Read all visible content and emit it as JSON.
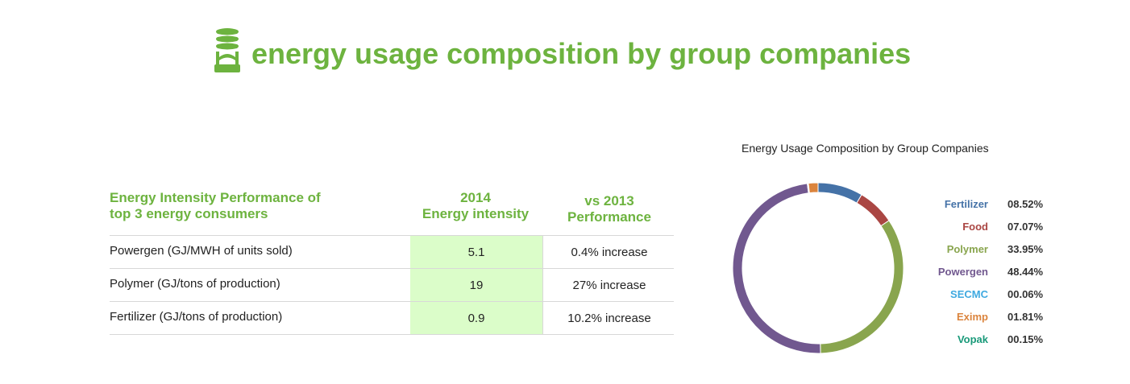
{
  "header": {
    "title": "energy usage composition by group companies",
    "icon": "lightbulb-icon",
    "color": "#6db33f"
  },
  "table": {
    "headers": {
      "col1_line1": "Energy Intensity Performance of",
      "col1_line2": "top 3 energy consumers",
      "col2_line1": "2014",
      "col2_line2": "Energy intensity",
      "col3_line1": "vs 2013",
      "col3_line2": "Performance"
    },
    "rows": [
      {
        "name": "Powergen (GJ/MWH of units sold)",
        "value": "5.1",
        "performance": "0.4% increase"
      },
      {
        "name": "Polymer (GJ/tons of production)",
        "value": "19",
        "performance": "27% increase"
      },
      {
        "name": "Fertilizer (GJ/tons of production)",
        "value": "0.9",
        "performance": "10.2% increase"
      }
    ]
  },
  "chart_data": {
    "type": "pie",
    "subtype": "donut",
    "title": "Energy Usage Composition by Group Companies",
    "legend_position": "right",
    "series": [
      {
        "name": "Fertilizer",
        "value": 8.52,
        "label": "08.52%",
        "color": "#4572a7"
      },
      {
        "name": "Food",
        "value": 7.07,
        "label": "07.07%",
        "color": "#aa4643"
      },
      {
        "name": "Polymer",
        "value": 33.95,
        "label": "33.95%",
        "color": "#89a54e"
      },
      {
        "name": "Powergen",
        "value": 48.44,
        "label": "48.44%",
        "color": "#71588f"
      },
      {
        "name": "SECMC",
        "value": 0.06,
        "label": "00.06%",
        "color": "#4198af"
      },
      {
        "name": "Eximp",
        "value": 1.81,
        "label": "01.81%",
        "color": "#db843d"
      },
      {
        "name": "Vopak",
        "value": 0.15,
        "label": "00.15%",
        "color": "#1a9a7a"
      }
    ],
    "legend_colors": {
      "Fertilizer": "#4572a7",
      "Food": "#aa4643",
      "Polymer": "#89a54e",
      "Powergen": "#71588f",
      "SECMC": "#3fa9e0",
      "Eximp": "#db843d",
      "Vopak": "#1a9a7a"
    }
  }
}
